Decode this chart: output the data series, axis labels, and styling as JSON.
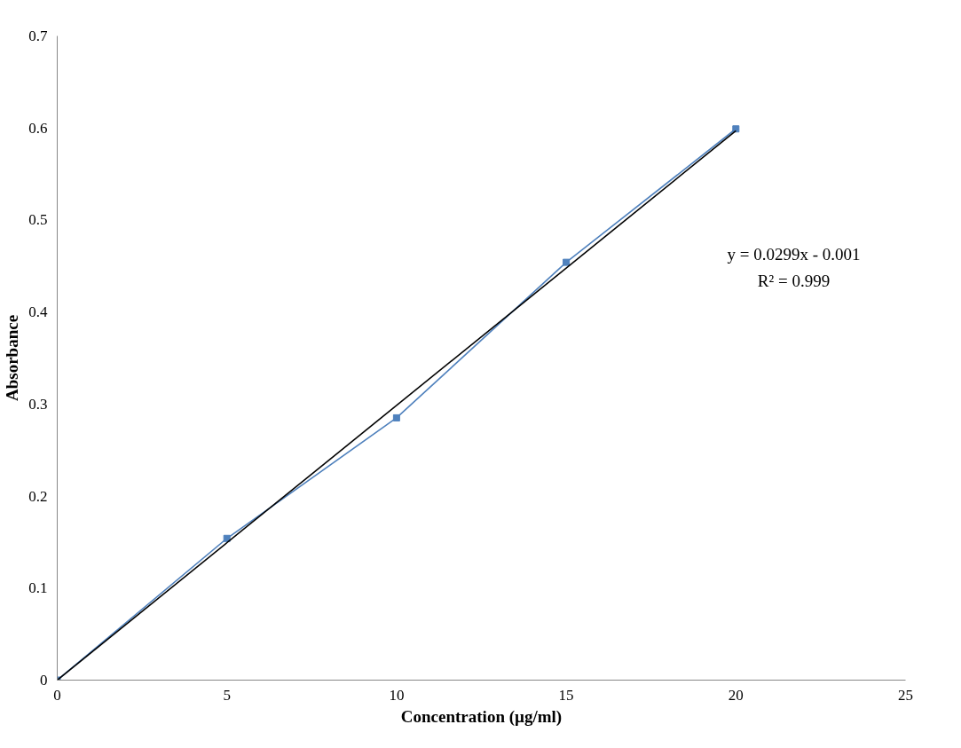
{
  "chart_data": {
    "type": "line",
    "xlabel": "Concentration (µg/ml)",
    "ylabel": "Absorbance",
    "x": [
      0,
      5,
      10,
      15,
      20
    ],
    "series": [
      {
        "color": "#4f81bd",
        "values": [
          0,
          0.154,
          0.285,
          0.454,
          0.599
        ],
        "marker": "square"
      },
      {
        "type": "line",
        "color": "#000000",
        "x": [
          0,
          20
        ],
        "values": [
          0,
          0.597
        ],
        "marker": "none"
      }
    ],
    "xlim": [
      0,
      25
    ],
    "xticks": [
      0,
      5,
      10,
      15,
      20,
      25
    ],
    "ylim": [
      0,
      0.7
    ],
    "yticks": [
      0,
      0.1,
      0.2,
      0.3,
      0.4,
      0.5,
      0.6,
      0.7
    ],
    "annotations": [
      "y = 0.0299x - 0.001",
      "R² = 0.999"
    ],
    "grid": false
  }
}
